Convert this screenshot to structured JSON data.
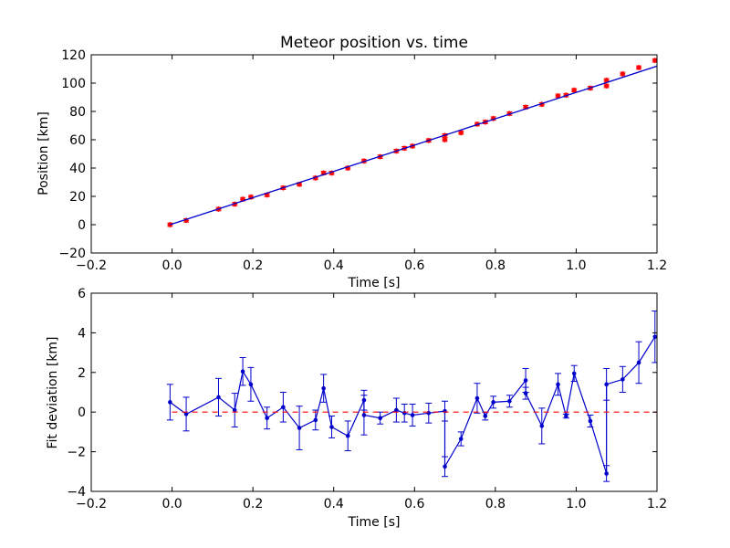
{
  "chart_data": [
    {
      "type": "scatter",
      "title": "Meteor position vs. time",
      "xlabel": "Time [s]",
      "ylabel": "Position [km]",
      "xlim": [
        -0.2,
        1.2
      ],
      "ylim": [
        -20,
        120
      ],
      "xticks": [
        "−0.2",
        "0.0",
        "0.2",
        "0.4",
        "0.6",
        "0.8",
        "1.0",
        "1.2"
      ],
      "yticks": [
        "−20",
        "0",
        "20",
        "40",
        "60",
        "80",
        "100",
        "120"
      ],
      "grid": false,
      "series": [
        {
          "kind": "points-with-error",
          "color": "#ff0000",
          "marker": "diamond",
          "points": [
            {
              "x": -0.005,
              "y": 0.0
            },
            {
              "x": 0.035,
              "y": 3.0
            },
            {
              "x": 0.115,
              "y": 11.0
            },
            {
              "x": 0.155,
              "y": 14.5
            },
            {
              "x": 0.175,
              "y": 18.0
            },
            {
              "x": 0.195,
              "y": 19.5
            },
            {
              "x": 0.235,
              "y": 21.0
            },
            {
              "x": 0.275,
              "y": 26.0
            },
            {
              "x": 0.315,
              "y": 28.5
            },
            {
              "x": 0.355,
              "y": 33.0
            },
            {
              "x": 0.375,
              "y": 36.5
            },
            {
              "x": 0.395,
              "y": 36.5
            },
            {
              "x": 0.435,
              "y": 40.0
            },
            {
              "x": 0.475,
              "y": 45.0
            },
            {
              "x": 0.515,
              "y": 48.0
            },
            {
              "x": 0.555,
              "y": 52.0
            },
            {
              "x": 0.575,
              "y": 54.0
            },
            {
              "x": 0.595,
              "y": 55.5
            },
            {
              "x": 0.635,
              "y": 59.5
            },
            {
              "x": 0.675,
              "y": 60.0
            },
            {
              "x": 0.675,
              "y": 63.0
            },
            {
              "x": 0.715,
              "y": 65.0
            },
            {
              "x": 0.755,
              "y": 71.0
            },
            {
              "x": 0.775,
              "y": 72.5
            },
            {
              "x": 0.795,
              "y": 75.0
            },
            {
              "x": 0.835,
              "y": 78.5
            },
            {
              "x": 0.875,
              "y": 83.0
            },
            {
              "x": 0.915,
              "y": 85.0
            },
            {
              "x": 0.955,
              "y": 91.0
            },
            {
              "x": 0.975,
              "y": 91.5
            },
            {
              "x": 0.995,
              "y": 95.0
            },
            {
              "x": 1.035,
              "y": 96.5
            },
            {
              "x": 1.075,
              "y": 98.0
            },
            {
              "x": 1.075,
              "y": 102.0
            },
            {
              "x": 1.115,
              "y": 106.5
            },
            {
              "x": 1.155,
              "y": 111.0
            },
            {
              "x": 1.195,
              "y": 116.0
            }
          ],
          "yerr": 1.2
        },
        {
          "kind": "fit-line",
          "color": "#0000cc",
          "x": [
            -0.005,
            1.2
          ],
          "y": [
            0.0,
            112.0
          ]
        }
      ]
    },
    {
      "type": "line",
      "title": "",
      "xlabel": "Time [s]",
      "ylabel": "Fit deviation [km]",
      "xlim": [
        -0.2,
        1.2
      ],
      "ylim": [
        -4,
        6
      ],
      "xticks": [
        "−0.2",
        "0.0",
        "0.2",
        "0.4",
        "0.6",
        "0.8",
        "1.0",
        "1.2"
      ],
      "yticks": [
        "−4",
        "−2",
        "0",
        "2",
        "4",
        "6"
      ],
      "grid": false,
      "series": [
        {
          "kind": "deviation-line",
          "color": "#0000cc",
          "x": [
            -0.005,
            0.035,
            0.115,
            0.155,
            0.175,
            0.195,
            0.235,
            0.275,
            0.315,
            0.355,
            0.375,
            0.395,
            0.435,
            0.475,
            0.475,
            0.515,
            0.555,
            0.575,
            0.595,
            0.635,
            0.675,
            0.675,
            0.715,
            0.755,
            0.775,
            0.795,
            0.835,
            0.875,
            0.875,
            0.915,
            0.955,
            0.975,
            0.995,
            1.035,
            1.075,
            1.075,
            1.115,
            1.155,
            1.195
          ],
          "y": [
            0.5,
            -0.1,
            0.75,
            0.1,
            2.05,
            1.4,
            -0.3,
            0.25,
            -0.8,
            -0.4,
            1.2,
            -0.75,
            -1.2,
            0.6,
            -0.15,
            -0.3,
            0.1,
            -0.05,
            -0.15,
            -0.05,
            0.05,
            -2.75,
            -1.35,
            0.7,
            -0.2,
            0.5,
            0.55,
            1.6,
            0.95,
            -0.7,
            1.4,
            -0.2,
            1.95,
            -0.45,
            -3.1,
            1.4,
            1.65,
            2.5,
            3.8
          ],
          "yerr": [
            0.9,
            0.85,
            0.95,
            0.85,
            0.7,
            0.85,
            0.55,
            0.75,
            1.1,
            0.5,
            0.7,
            0.55,
            0.75,
            0.5,
            1.0,
            0.3,
            0.6,
            0.45,
            0.55,
            0.5,
            0.5,
            0.5,
            0.35,
            0.75,
            0.2,
            0.3,
            0.3,
            0.6,
            0.3,
            0.9,
            0.55,
            0.1,
            0.4,
            0.3,
            0.4,
            0.8,
            0.65,
            1.05,
            1.3
          ]
        },
        {
          "kind": "zero-line",
          "color": "#ff0000",
          "dashed": true,
          "y": 0
        }
      ]
    }
  ]
}
